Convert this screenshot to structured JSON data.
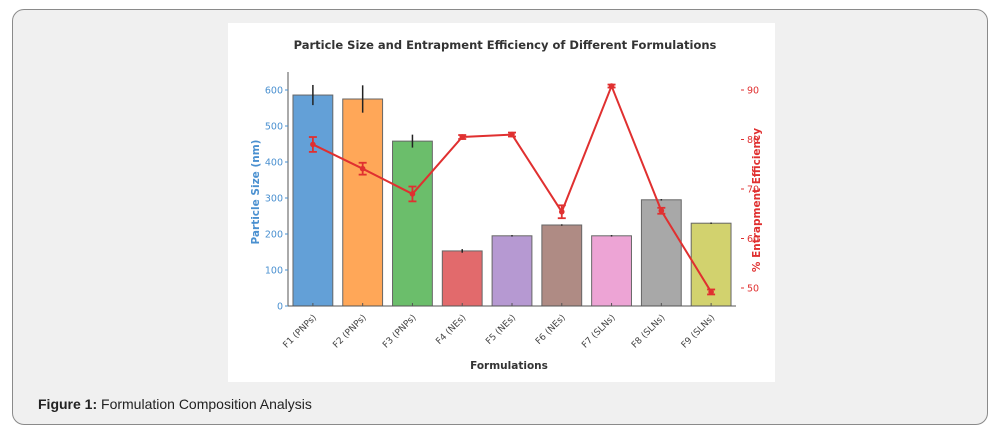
{
  "figure": {
    "caption_label": "Figure 1:",
    "caption_text": " Formulation Composition Analysis"
  },
  "chart_data": {
    "type": "bar",
    "title": "Particle Size and Entrapment Efficiency of Different Formulations",
    "xlabel": "Formulations",
    "ylabel": "Particle Size (nm)",
    "y2label": "% Entrapment Efficiency",
    "categories": [
      "F1 (PNPs)",
      "F2 (PNPs)",
      "F3 (PNPs)",
      "F4 (NEs)",
      "F5 (NEs)",
      "F6 (NEs)",
      "F7 (SLNs)",
      "F8 (SLNs)",
      "F9 (SLNs)"
    ],
    "ylim": [
      0,
      650
    ],
    "y_ticks": [
      0,
      100,
      200,
      300,
      400,
      500,
      600
    ],
    "y2lim": [
      46.7,
      93
    ],
    "y2_ticks": [
      50,
      60,
      70,
      80,
      90
    ],
    "grid": false,
    "series": [
      {
        "name": "Particle Size (nm)",
        "type": "bar",
        "axis": "left",
        "values": [
          586,
          575,
          458,
          153,
          195,
          225,
          195,
          295,
          230
        ],
        "errors": [
          28,
          38,
          18,
          5,
          2,
          2,
          2,
          2,
          2
        ],
        "colors": [
          "#5b9bd5",
          "#ffa24f",
          "#63bb63",
          "#e06264",
          "#b294d0",
          "#ab857d",
          "#ec9fd3",
          "#a3a3a3",
          "#d0d066"
        ]
      },
      {
        "name": "% Entrapment Efficiency",
        "type": "line",
        "axis": "right",
        "values": [
          79.0,
          74.1,
          69.0,
          80.5,
          81.0,
          65.4,
          90.8,
          65.6,
          49.2
        ],
        "errors": [
          1.5,
          1.2,
          1.5,
          0.4,
          0.4,
          1.3,
          0.3,
          0.6,
          0.5
        ],
        "color": "#e03030"
      }
    ],
    "colors": {
      "left_axis": "#4a90d0",
      "right_axis": "#e03030",
      "axis_line": "#555555"
    }
  }
}
